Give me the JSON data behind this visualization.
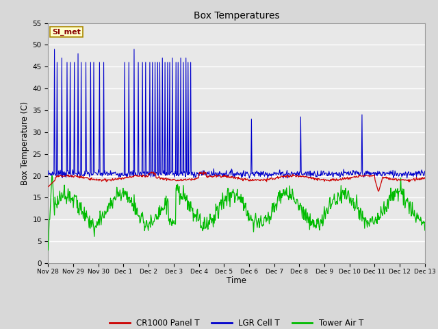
{
  "title": "Box Temperatures",
  "xlabel": "Time",
  "ylabel": "Box Temperature (C)",
  "ylim": [
    0,
    55
  ],
  "background_color": "#d8d8d8",
  "plot_bg_color": "#e8e8e8",
  "grid_color": "#ffffff",
  "annotation_text": "SI_met",
  "annotation_bg": "#ffffcc",
  "annotation_border": "#aa8800",
  "annotation_text_color": "#880000",
  "legend_entries": [
    "CR1000 Panel T",
    "LGR Cell T",
    "Tower Air T"
  ],
  "legend_colors": [
    "#cc0000",
    "#0000cc",
    "#00bb00"
  ],
  "tick_labels": [
    "Nov 28",
    "Nov 29",
    "Nov 30",
    "Dec 1",
    "Dec 2",
    "Dec 3",
    "Dec 4",
    "Dec 5",
    "Dec 6",
    "Dec 7",
    "Dec 8",
    "Dec 9",
    "Dec 10",
    "Dec 11",
    "Dec 12",
    "Dec 13"
  ],
  "yticks": [
    0,
    5,
    10,
    15,
    20,
    25,
    30,
    35,
    40,
    45,
    50,
    55
  ]
}
